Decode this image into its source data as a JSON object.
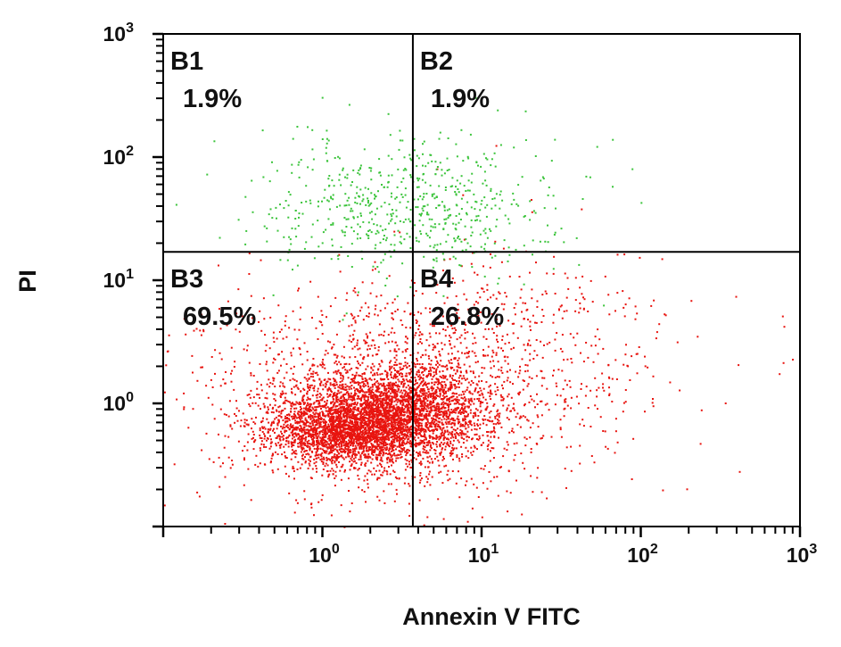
{
  "chart_data": {
    "type": "scatter",
    "xlabel": "Annexin V FITC",
    "ylabel": "PI",
    "x_scale": "log",
    "y_scale": "log",
    "xlim": [
      0.1,
      1000
    ],
    "ylim": [
      0.1,
      1000
    ],
    "x_ticks": [
      {
        "value": 1,
        "base": "10",
        "exp": "0"
      },
      {
        "value": 10,
        "base": "10",
        "exp": "1"
      },
      {
        "value": 100,
        "base": "10",
        "exp": "2"
      },
      {
        "value": 1000,
        "base": "10",
        "exp": "3"
      }
    ],
    "y_ticks": [
      {
        "value": 1,
        "base": "10",
        "exp": "0"
      },
      {
        "value": 10,
        "base": "10",
        "exp": "1"
      },
      {
        "value": 100,
        "base": "10",
        "exp": "2"
      },
      {
        "value": 1000,
        "base": "10",
        "exp": "3"
      }
    ],
    "gates": {
      "x": 3.7,
      "y": 17
    },
    "quadrants": [
      {
        "id": "B1",
        "label": "B1",
        "percent": "1.9%",
        "value": 1.9,
        "region": "top-left"
      },
      {
        "id": "B2",
        "label": "B2",
        "percent": "1.9%",
        "value": 1.9,
        "region": "top-right"
      },
      {
        "id": "B3",
        "label": "B3",
        "percent": "69.5%",
        "value": 69.5,
        "region": "bottom-left"
      },
      {
        "id": "B4",
        "label": "B4",
        "percent": "26.8%",
        "value": 26.8,
        "region": "bottom-right"
      }
    ],
    "colors": {
      "upper_population": "#3cc43c",
      "lower_population": "#e8140f",
      "lines": "#000000"
    },
    "clusters": [
      {
        "population": "lower",
        "center": [
          1.8,
          0.75
        ],
        "spread_log": [
          0.28,
          0.18
        ],
        "points": 2600
      },
      {
        "population": "lower",
        "center": [
          1.3,
          0.55
        ],
        "spread_log": [
          0.22,
          0.1
        ],
        "points": 900
      },
      {
        "population": "lower",
        "center": [
          4.5,
          0.9
        ],
        "spread_log": [
          0.22,
          0.2
        ],
        "points": 1100
      },
      {
        "population": "lower",
        "center": [
          2.2,
          1.2
        ],
        "spread_log": [
          0.55,
          0.45
        ],
        "points": 1400
      },
      {
        "population": "lower",
        "center": [
          20,
          2.5
        ],
        "spread_log": [
          0.5,
          0.45
        ],
        "points": 450
      },
      {
        "population": "upper",
        "center": [
          3.5,
          40
        ],
        "spread_log": [
          0.45,
          0.28
        ],
        "points": 650
      }
    ],
    "grid": false,
    "legend": "none"
  }
}
